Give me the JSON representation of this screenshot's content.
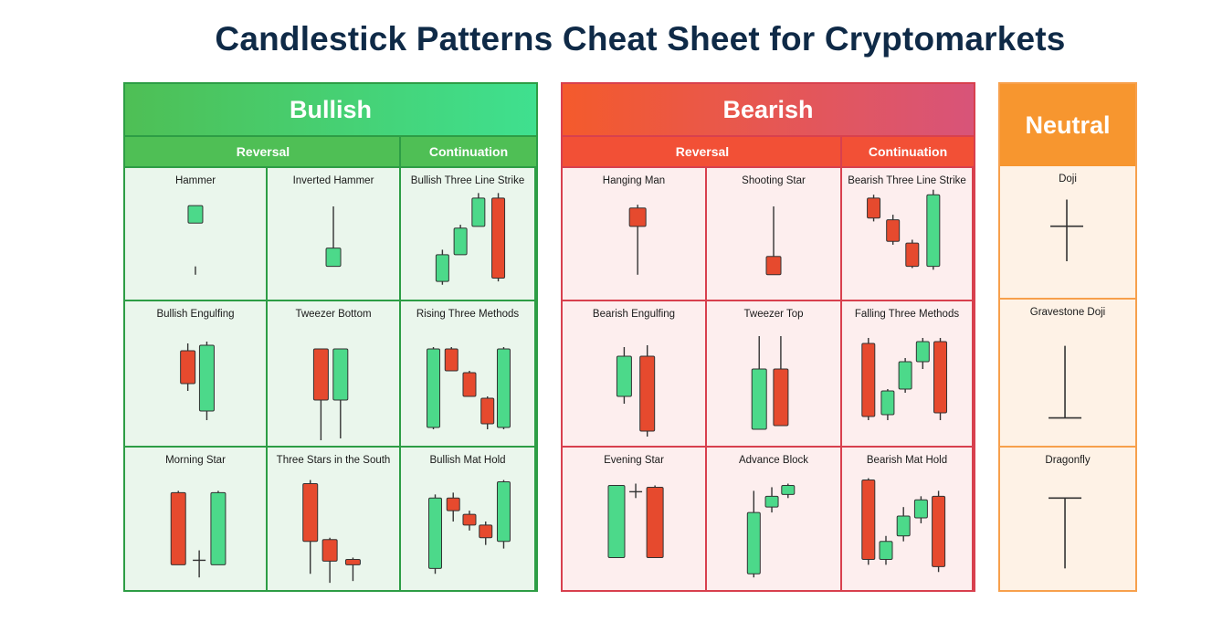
{
  "title": "Candlestick Patterns Cheat Sheet for Cryptomarkets",
  "colors": {
    "bull_candle": "#4cd98a",
    "bear_candle": "#e64a2e",
    "bull_border": "#2d9d45",
    "bear_border": "#d8404e",
    "neutral_border": "#f7a04c"
  },
  "bullish": {
    "header": "Bullish",
    "reversal_label": "Reversal",
    "continuation_label": "Continuation",
    "patterns": [
      "Hammer",
      "Inverted Hammer",
      "Bullish Three Line Strike",
      "Bullish Engulfing",
      "Tweezer Bottom",
      "Rising Three Methods",
      "Morning Star",
      "Three Stars in the South",
      "Bullish Mat Hold"
    ]
  },
  "bearish": {
    "header": "Bearish",
    "reversal_label": "Reversal",
    "continuation_label": "Continuation",
    "patterns": [
      "Hanging Man",
      "Shooting Star",
      "Bearish Three Line Strike",
      "Bearish Engulfing",
      "Tweezer Top",
      "Falling Three Methods",
      "Evening Star",
      "Advance Block",
      "Bearish Mat Hold"
    ]
  },
  "neutral": {
    "header": "Neutral",
    "patterns": [
      "Doji",
      "Gravestone Doji",
      "Dragonfly"
    ]
  }
}
